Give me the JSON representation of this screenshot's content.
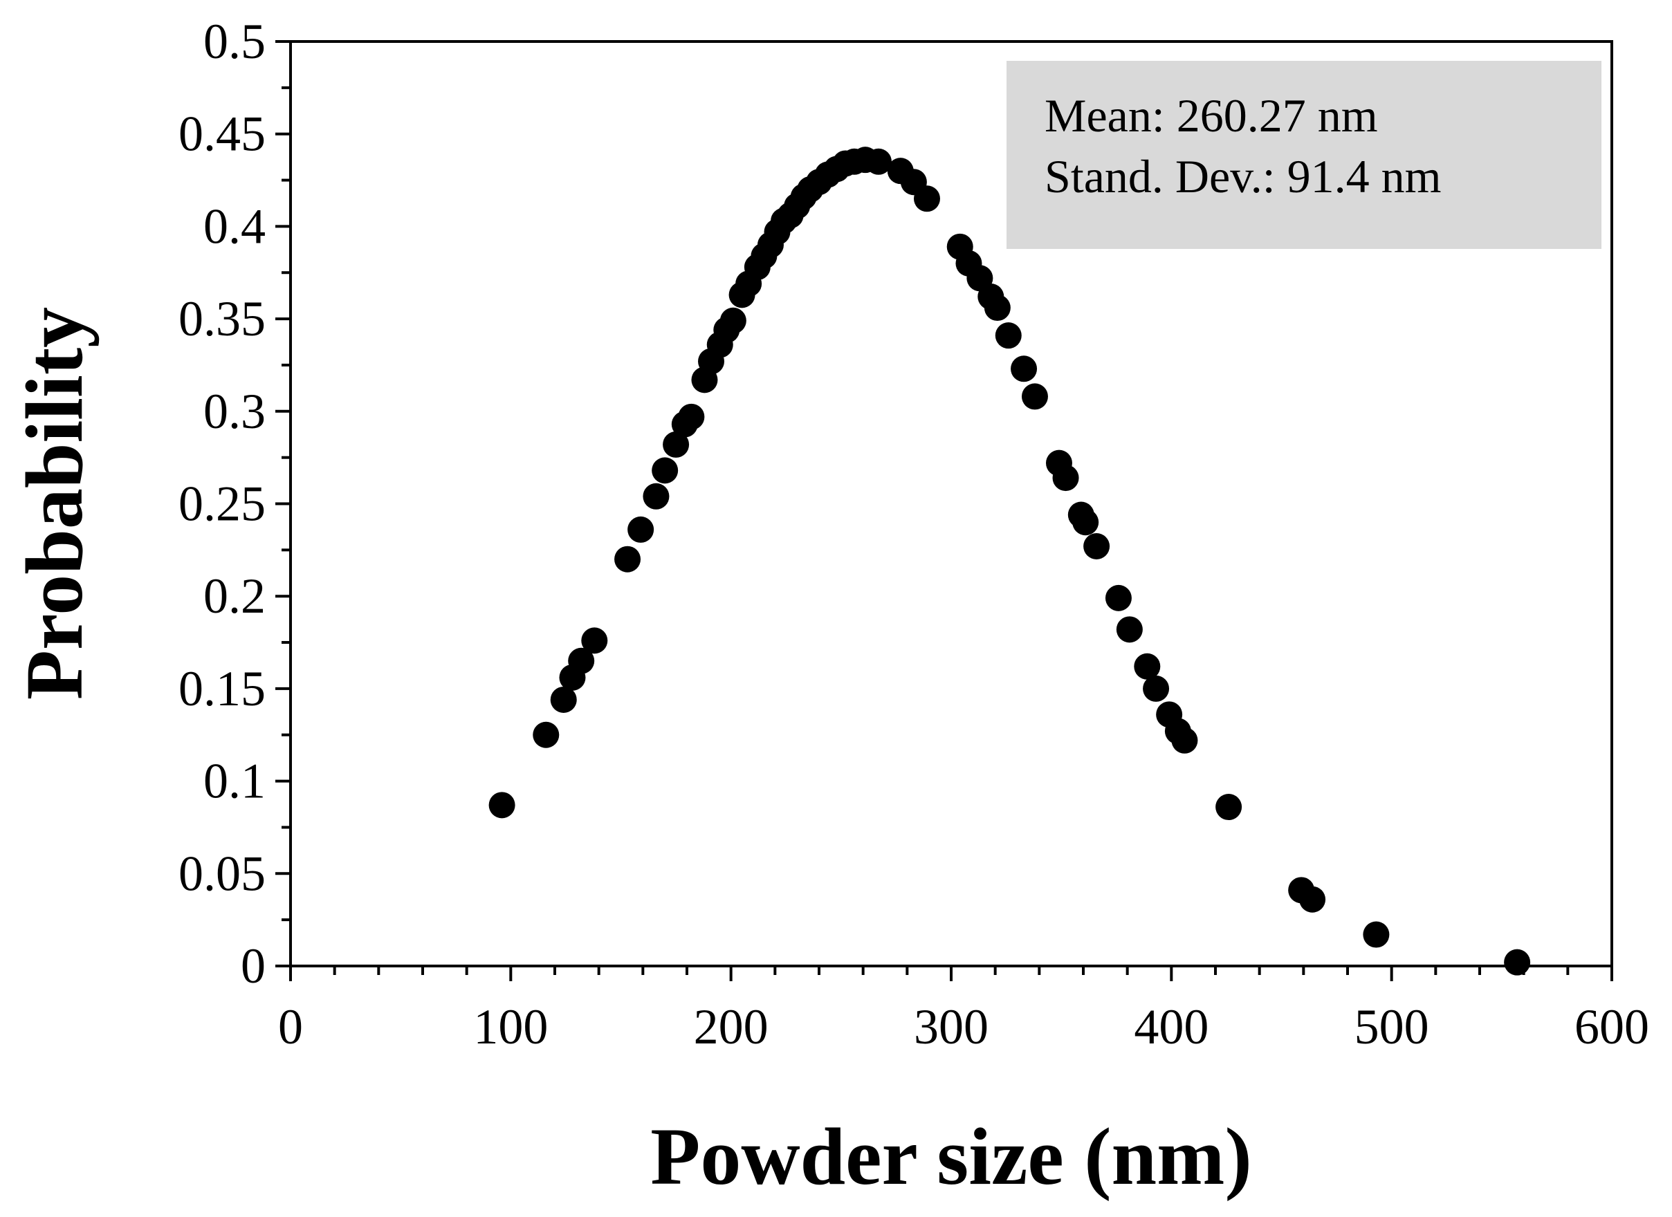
{
  "chart_data": {
    "type": "scatter",
    "xlabel": "Powder size (nm)",
    "ylabel": "Probability",
    "xlim": [
      0,
      600
    ],
    "ylim": [
      0,
      0.5
    ],
    "x_ticks": [
      0,
      100,
      200,
      300,
      400,
      500,
      600
    ],
    "x_tick_labels": [
      "0",
      "100",
      "200",
      "300",
      "400",
      "500",
      "600"
    ],
    "y_ticks": [
      0,
      0.05,
      0.1,
      0.15,
      0.2,
      0.25,
      0.3,
      0.35,
      0.4,
      0.45,
      0.5
    ],
    "y_tick_labels": [
      "0",
      "0.05",
      "0.1",
      "0.15",
      "0.2",
      "0.25",
      "0.3",
      "0.35",
      "0.4",
      "0.45",
      "0.5"
    ],
    "grid": false,
    "legend": "none",
    "marker_color": "#000000",
    "annotation": {
      "lines": [
        "Mean: 260.27 nm",
        "Stand. Dev.: 91.4 nm"
      ],
      "background": "#d9d9d9",
      "placement": "top-right"
    },
    "series": [
      {
        "points": [
          [
            96,
            0.087
          ],
          [
            116,
            0.125
          ],
          [
            124,
            0.144
          ],
          [
            128,
            0.156
          ],
          [
            132,
            0.165
          ],
          [
            138,
            0.176
          ],
          [
            153,
            0.22
          ],
          [
            159,
            0.236
          ],
          [
            166,
            0.254
          ],
          [
            170,
            0.268
          ],
          [
            175,
            0.282
          ],
          [
            179,
            0.293
          ],
          [
            182,
            0.297
          ],
          [
            188,
            0.317
          ],
          [
            191,
            0.327
          ],
          [
            195,
            0.336
          ],
          [
            198,
            0.344
          ],
          [
            201,
            0.349
          ],
          [
            205,
            0.363
          ],
          [
            208,
            0.369
          ],
          [
            212,
            0.378
          ],
          [
            215,
            0.384
          ],
          [
            218,
            0.39
          ],
          [
            221,
            0.397
          ],
          [
            224,
            0.403
          ],
          [
            227,
            0.406
          ],
          [
            230,
            0.411
          ],
          [
            233,
            0.416
          ],
          [
            236,
            0.42
          ],
          [
            240,
            0.424
          ],
          [
            244,
            0.428
          ],
          [
            248,
            0.431
          ],
          [
            252,
            0.434
          ],
          [
            256,
            0.435
          ],
          [
            261,
            0.436
          ],
          [
            267,
            0.435
          ],
          [
            277,
            0.43
          ],
          [
            283,
            0.424
          ],
          [
            289,
            0.415
          ],
          [
            304,
            0.389
          ],
          [
            308,
            0.38
          ],
          [
            313,
            0.372
          ],
          [
            318,
            0.362
          ],
          [
            321,
            0.356
          ],
          [
            326,
            0.341
          ],
          [
            333,
            0.323
          ],
          [
            338,
            0.308
          ],
          [
            349,
            0.272
          ],
          [
            352,
            0.264
          ],
          [
            359,
            0.244
          ],
          [
            361,
            0.24
          ],
          [
            366,
            0.227
          ],
          [
            376,
            0.199
          ],
          [
            381,
            0.182
          ],
          [
            389,
            0.162
          ],
          [
            393,
            0.15
          ],
          [
            399,
            0.136
          ],
          [
            403,
            0.127
          ],
          [
            406,
            0.122
          ],
          [
            426,
            0.086
          ],
          [
            459,
            0.041
          ],
          [
            464,
            0.036
          ],
          [
            493,
            0.017
          ],
          [
            557,
            0.002
          ]
        ]
      }
    ]
  }
}
